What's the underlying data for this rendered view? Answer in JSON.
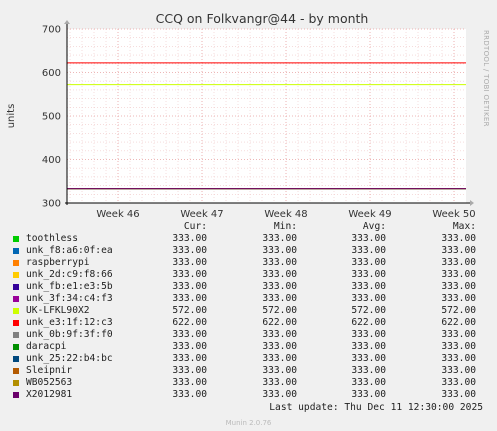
{
  "chart_data": {
    "type": "line",
    "title": "CCQ on Folkvangr@44 - by month",
    "ylabel": "units",
    "xlabel": "",
    "ylim": [
      300,
      700
    ],
    "yticks": [
      "300",
      "400",
      "500",
      "600",
      "700"
    ],
    "xticks": [
      "Week 46",
      "Week 47",
      "Week 48",
      "Week 49",
      "Week 50"
    ],
    "grid": true,
    "side_label": "RRDTOOL / TOBI OETIKER",
    "series": [
      {
        "name": "toothless",
        "color": "#00cc00",
        "cur": "333.00",
        "min": "333.00",
        "avg": "333.00",
        "max": "333.00",
        "value": 333
      },
      {
        "name": "unk_f8:a6:0f:ea",
        "color": "#0066b3",
        "cur": "333.00",
        "min": "333.00",
        "avg": "333.00",
        "max": "333.00",
        "value": 333
      },
      {
        "name": "raspberrypi",
        "color": "#ff8000",
        "cur": "333.00",
        "min": "333.00",
        "avg": "333.00",
        "max": "333.00",
        "value": 333
      },
      {
        "name": "unk_2d:c9:f8:66",
        "color": "#ffcc00",
        "cur": "333.00",
        "min": "333.00",
        "avg": "333.00",
        "max": "333.00",
        "value": 333
      },
      {
        "name": "unk_fb:e1:e3:5b",
        "color": "#330099",
        "cur": "333.00",
        "min": "333.00",
        "avg": "333.00",
        "max": "333.00",
        "value": 333
      },
      {
        "name": "unk_3f:34:c4:f3",
        "color": "#990099",
        "cur": "333.00",
        "min": "333.00",
        "avg": "333.00",
        "max": "333.00",
        "value": 333
      },
      {
        "name": "UK-LFKL90X2",
        "color": "#ccff00",
        "cur": "572.00",
        "min": "572.00",
        "avg": "572.00",
        "max": "572.00",
        "value": 572
      },
      {
        "name": "unk_e3:1f:12:c3",
        "color": "#ff0000",
        "cur": "622.00",
        "min": "622.00",
        "avg": "622.00",
        "max": "622.00",
        "value": 622
      },
      {
        "name": "unk_0b:9f:3f:f0",
        "color": "#808080",
        "cur": "333.00",
        "min": "333.00",
        "avg": "333.00",
        "max": "333.00",
        "value": 333
      },
      {
        "name": "daracpi",
        "color": "#008f00",
        "cur": "333.00",
        "min": "333.00",
        "avg": "333.00",
        "max": "333.00",
        "value": 333
      },
      {
        "name": "unk_25:22:b4:bc",
        "color": "#00487d",
        "cur": "333.00",
        "min": "333.00",
        "avg": "333.00",
        "max": "333.00",
        "value": 333
      },
      {
        "name": "Sleipnir",
        "color": "#b35a00",
        "cur": "333.00",
        "min": "333.00",
        "avg": "333.00",
        "max": "333.00",
        "value": 333
      },
      {
        "name": "WB052563",
        "color": "#b38f00",
        "cur": "333.00",
        "min": "333.00",
        "avg": "333.00",
        "max": "333.00",
        "value": 333
      },
      {
        "name": "X2012981",
        "color": "#6b006b",
        "cur": "333.00",
        "min": "333.00",
        "avg": "333.00",
        "max": "333.00",
        "value": 333
      }
    ]
  },
  "legend_headers": {
    "cur": "Cur:",
    "min": "Min:",
    "avg": "Avg:",
    "max": "Max:"
  },
  "footer": {
    "last_update": "Last update: Thu Dec 11 12:30:00 2025",
    "munin": "Munin 2.0.76"
  }
}
